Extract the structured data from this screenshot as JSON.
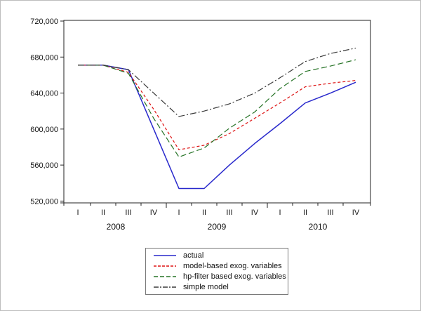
{
  "chart_data": {
    "type": "line",
    "title": "",
    "xlabel": "",
    "ylabel": "",
    "grid": false,
    "legend_position": "bottom-center",
    "ylim": [
      520000,
      720000
    ],
    "y_ticks": [
      {
        "label": "720,000",
        "value": 720000
      },
      {
        "label": "680,000",
        "value": 680000
      },
      {
        "label": "640,000",
        "value": 640000
      },
      {
        "label": "600,000",
        "value": 600000
      },
      {
        "label": "560,000",
        "value": 560000
      },
      {
        "label": "520,000",
        "value": 520000
      }
    ],
    "quarter_labels": [
      "I",
      "II",
      "III",
      "IV",
      "I",
      "II",
      "III",
      "IV",
      "I",
      "II",
      "III",
      "IV"
    ],
    "year_labels": [
      {
        "label": "2008",
        "start_index": 0,
        "end_index": 3
      },
      {
        "label": "2009",
        "start_index": 4,
        "end_index": 7
      },
      {
        "label": "2010",
        "start_index": 8,
        "end_index": 11
      }
    ],
    "x_categories": [
      "2008 I",
      "2008 II",
      "2008 III",
      "2008 IV",
      "2009 I",
      "2009 II",
      "2009 III",
      "2009 IV",
      "2010 I",
      "2010 II",
      "2010 III",
      "2010 IV"
    ],
    "series": [
      {
        "name": "actual",
        "color": "#2929cc",
        "line_style": "solid",
        "values": [
          671000,
          671000,
          666000,
          600000,
          534000,
          534000,
          560000,
          584000,
          606000,
          629000,
          640000,
          652000
        ]
      },
      {
        "name": "model-based exog. variables",
        "color": "#dd1111",
        "line_style": "dashed",
        "values": [
          671000,
          671000,
          663000,
          622000,
          577000,
          582000,
          595000,
          612000,
          629000,
          647000,
          651000,
          654000
        ]
      },
      {
        "name": "hp-filter based exog. variables",
        "color": "#267326",
        "line_style": "long-dashed",
        "values": [
          671000,
          671000,
          662000,
          612000,
          569000,
          579000,
          601000,
          619000,
          645000,
          664000,
          670000,
          677000
        ]
      },
      {
        "name": "simple model",
        "color": "#3a3a3a",
        "line_style": "dash-dot",
        "values": [
          671000,
          671000,
          666000,
          640000,
          614000,
          620000,
          628000,
          640000,
          657000,
          675000,
          684000,
          690000
        ]
      }
    ]
  }
}
